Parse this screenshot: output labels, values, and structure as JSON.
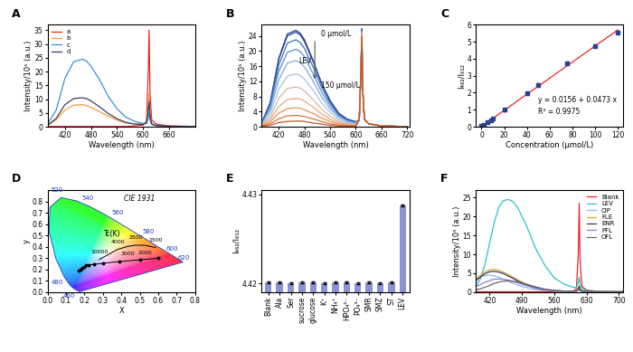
{
  "chart_data": [
    {
      "type": "line",
      "title": "A",
      "x_label": "Wavelength (nm)",
      "y_label": "Intensity/10⁵ (a.u.)",
      "xlim": [
        380,
        720
      ],
      "ylim": [
        0,
        37
      ],
      "xticks": [
        420,
        480,
        540,
        600,
        660
      ],
      "yticks": [
        0,
        5,
        10,
        15,
        20,
        25,
        30,
        35
      ],
      "legend": "upper left",
      "x": [
        380,
        400,
        420,
        440,
        460,
        470,
        480,
        500,
        520,
        540,
        560,
        580,
        600,
        608,
        612,
        614,
        616,
        620,
        630,
        660,
        700,
        720
      ],
      "series": [
        {
          "name": "a",
          "color": "#e8262a",
          "values": [
            0.1,
            0.1,
            0.1,
            0.1,
            0.1,
            0.1,
            0.1,
            0.1,
            0.1,
            0.1,
            0.1,
            0.3,
            0.6,
            2.0,
            20,
            35,
            12,
            2.5,
            1.0,
            0.3,
            0.2,
            0.1
          ]
        },
        {
          "name": "b",
          "color": "#f39c3c",
          "values": [
            0.5,
            2.5,
            6.0,
            7.8,
            8.0,
            7.6,
            7.0,
            5.5,
            3.8,
            2.4,
            1.4,
            1.0,
            1.0,
            1.5,
            8,
            12,
            5,
            1.2,
            0.5,
            0.2,
            0.1,
            0.1
          ]
        },
        {
          "name": "c",
          "color": "#3b8fd9",
          "values": [
            1.0,
            6.0,
            17.5,
            23.5,
            24.5,
            23.8,
            22,
            17,
            11,
            6.5,
            3.5,
            2.0,
            1.2,
            1.3,
            3,
            5,
            2.5,
            0.8,
            0.4,
            0.2,
            0.1,
            0.1
          ]
        },
        {
          "name": "d",
          "color": "#3a3f5c",
          "values": [
            0.5,
            3.0,
            8.0,
            10.2,
            10.5,
            10.2,
            9.4,
            7.2,
            4.8,
            2.9,
            1.6,
            1.0,
            0.8,
            1.3,
            6,
            9,
            4,
            1.0,
            0.4,
            0.2,
            0.1,
            0.1
          ]
        }
      ]
    },
    {
      "type": "line",
      "title": "B",
      "x_label": "Wavelength (nm)",
      "y_label": "Intensity/10⁵ (a.u.)",
      "xlim": [
        380,
        725
      ],
      "ylim": [
        0,
        27
      ],
      "xticks": [
        420,
        480,
        540,
        600,
        660,
        720
      ],
      "yticks": [
        0,
        4,
        8,
        12,
        16,
        20,
        24
      ],
      "annotations": [
        "0 μmol/L",
        "LEV",
        "150 μmol/L"
      ],
      "x": [
        380,
        400,
        420,
        440,
        460,
        470,
        480,
        500,
        520,
        540,
        560,
        580,
        600,
        608,
        612,
        614,
        616,
        620,
        630,
        660,
        700,
        720
      ],
      "series": [
        {
          "color": "#1f2f7a",
          "values": [
            1.0,
            6.4,
            18.1,
            24.5,
            25.5,
            24.7,
            23.0,
            17.6,
            11.5,
            6.9,
            3.6,
            2.0,
            1.3,
            1.8,
            15,
            26,
            10,
            2,
            0.8,
            0.2,
            0.1,
            0.1
          ]
        },
        {
          "color": "#2d4fa0",
          "values": [
            1.0,
            6.3,
            17.8,
            24.0,
            25.0,
            24.3,
            22.5,
            17.3,
            11.3,
            6.8,
            3.5,
            2.0,
            1.3,
            1.8,
            15,
            25.8,
            10,
            2,
            0.8,
            0.2,
            0.1,
            0.1
          ]
        },
        {
          "color": "#3d6fbf",
          "values": [
            0.9,
            5.8,
            16.3,
            22.1,
            23.0,
            22.3,
            20.7,
            15.9,
            10.4,
            6.2,
            3.2,
            1.8,
            1.2,
            1.8,
            15,
            25.5,
            10,
            2,
            0.8,
            0.2,
            0.1,
            0.1
          ]
        },
        {
          "color": "#5b8fd0",
          "values": [
            0.8,
            5.1,
            14.6,
            19.7,
            20.5,
            19.9,
            18.5,
            14.1,
            9.2,
            5.5,
            2.9,
            1.6,
            1.0,
            1.8,
            15,
            25.2,
            10,
            2,
            0.8,
            0.2,
            0.1,
            0.1
          ]
        },
        {
          "color": "#7fa9dc",
          "values": [
            0.7,
            4.4,
            12.4,
            16.8,
            17.5,
            17.0,
            15.8,
            12.1,
            7.9,
            4.7,
            2.5,
            1.4,
            0.9,
            1.8,
            15,
            25,
            10,
            2,
            0.8,
            0.2,
            0.1,
            0.1
          ]
        },
        {
          "color": "#a7c2e4",
          "values": [
            0.6,
            3.5,
            9.9,
            13.4,
            14.0,
            13.6,
            12.6,
            9.7,
            6.3,
            3.8,
            2.0,
            1.1,
            0.7,
            1.8,
            15,
            24.8,
            10,
            2,
            0.8,
            0.2,
            0.1,
            0.1
          ]
        },
        {
          "color": "#d3b8a8",
          "values": [
            0.4,
            2.6,
            7.5,
            10.1,
            10.5,
            10.2,
            9.5,
            7.2,
            4.7,
            2.8,
            1.5,
            0.8,
            0.5,
            1.8,
            15,
            24.6,
            10,
            2,
            0.8,
            0.2,
            0.1,
            0.1
          ]
        },
        {
          "color": "#e9a77a",
          "values": [
            0.3,
            1.9,
            5.3,
            7.2,
            7.5,
            7.3,
            6.8,
            5.2,
            3.4,
            2.0,
            1.1,
            0.6,
            0.4,
            1.8,
            15,
            24.4,
            10,
            2,
            0.8,
            0.2,
            0.1,
            0.1
          ]
        },
        {
          "color": "#e98f54",
          "values": [
            0.2,
            1.3,
            3.6,
            4.8,
            5.0,
            4.9,
            4.5,
            3.5,
            2.3,
            1.4,
            0.7,
            0.4,
            0.3,
            1.8,
            15,
            24.2,
            10,
            2,
            0.8,
            0.2,
            0.1,
            0.1
          ]
        },
        {
          "color": "#d9763a",
          "values": [
            0.1,
            0.8,
            2.1,
            2.9,
            3.0,
            2.9,
            2.7,
            2.1,
            1.4,
            0.8,
            0.4,
            0.2,
            0.2,
            1.8,
            15,
            24,
            10,
            2,
            0.8,
            0.2,
            0.1,
            0.1
          ]
        },
        {
          "color": "#b85a2a",
          "values": [
            0.1,
            0.4,
            1.1,
            1.4,
            1.5,
            1.5,
            1.4,
            1.0,
            0.7,
            0.4,
            0.2,
            0.1,
            0.1,
            1.8,
            15,
            23.8,
            10,
            2,
            0.8,
            0.2,
            0.1,
            0.1
          ]
        }
      ]
    },
    {
      "type": "scatter",
      "title": "C",
      "x_label": "Concentration (μmol/L)",
      "y_label": "I₄₆₂/I₆₁₂",
      "xlim": [
        -5,
        125
      ],
      "ylim": [
        0,
        6
      ],
      "xticks": [
        0,
        20,
        40,
        60,
        80,
        100,
        120
      ],
      "yticks": [
        0,
        1,
        2,
        3,
        4,
        5,
        6
      ],
      "annotations": [
        "y = 0.0156 + 0.0473 x",
        "R² = 0.9975"
      ],
      "x": [
        0,
        1,
        2,
        5,
        8,
        10,
        20,
        40,
        50,
        75,
        100,
        120
      ],
      "values": [
        0.05,
        0.07,
        0.1,
        0.25,
        0.4,
        0.5,
        1.0,
        1.95,
        2.45,
        3.75,
        4.75,
        5.55
      ],
      "errors": [
        0.03,
        0.03,
        0.03,
        0.04,
        0.04,
        0.05,
        0.08,
        0.08,
        0.08,
        0.1,
        0.08,
        0.08
      ],
      "color": "#2b3f8f",
      "marker": "s",
      "fit": {
        "color": "#e8262a",
        "x": [
          0,
          120
        ],
        "values": [
          0.02,
          5.69
        ]
      }
    },
    {
      "type": "cie",
      "title": "D",
      "x_label": "X",
      "y_label": "y",
      "xlim": [
        0.0,
        0.8
      ],
      "ylim": [
        0.0,
        0.9
      ],
      "xticks": [
        0.0,
        0.1,
        0.2,
        0.3,
        0.4,
        0.5,
        0.6,
        0.7,
        0.8
      ],
      "yticks": [
        0.0,
        0.1,
        0.2,
        0.3,
        0.4,
        0.5,
        0.6,
        0.7,
        0.8
      ],
      "annotations": [
        "CIE 1931"
      ],
      "locus": {
        "color": "#1f3fbf",
        "x": [
          0.1741,
          0.144,
          0.1241,
          0.0913,
          0.0454,
          0.0082,
          0.0139,
          0.0743,
          0.1547,
          0.2296,
          0.3016,
          0.3731,
          0.4441,
          0.5125,
          0.5752,
          0.627,
          0.6658,
          0.6915,
          0.719,
          0.7347
        ],
        "values": [
          0.005,
          0.0297,
          0.0578,
          0.1327,
          0.295,
          0.5384,
          0.7502,
          0.8338,
          0.8059,
          0.7543,
          0.6923,
          0.6245,
          0.5547,
          0.4866,
          0.4242,
          0.3725,
          0.334,
          0.3083,
          0.2809,
          0.2653
        ],
        "labels": [
          null,
          "460",
          null,
          "480",
          null,
          null,
          null,
          "520",
          null,
          "540",
          null,
          "560",
          null,
          "580",
          null,
          "600",
          null,
          "620",
          null,
          null
        ]
      },
      "planckian": {
        "name": "Tc(K)",
        "color": "#000000",
        "x": [
          0.281,
          0.38,
          0.437,
          0.477,
          0.527,
          0.586
        ],
        "values": [
          0.288,
          0.377,
          0.404,
          0.414,
          0.413,
          0.393
        ],
        "labels": [
          "10000",
          "4000",
          "3000",
          "2500",
          "2000",
          "1500"
        ]
      },
      "series": [
        {
          "color": "#000000",
          "marker": "o",
          "x": [
            0.17,
            0.18,
            0.19,
            0.2,
            0.21,
            0.225,
            0.25,
            0.3,
            0.39,
            0.5,
            0.6
          ],
          "values": [
            0.19,
            0.2,
            0.215,
            0.225,
            0.235,
            0.24,
            0.245,
            0.255,
            0.27,
            0.285,
            0.3
          ]
        }
      ]
    },
    {
      "type": "bar",
      "title": "E",
      "y_label": "I₄₆₂/I₆₁₂",
      "categories": [
        "Blank",
        "Ala",
        "Ser",
        "sucrose",
        "glucose",
        "K⁺",
        "NH₄⁺",
        "HPO₄²⁻",
        "PO₄³⁻",
        "SMR",
        "SMZ",
        "ST",
        "LEV"
      ],
      "values": [
        4.4201,
        4.4201,
        4.42,
        4.4201,
        4.4201,
        4.42,
        4.4201,
        4.4201,
        4.42,
        4.4201,
        4.42,
        4.4201,
        4.4288
      ],
      "errors": [
        0.0001,
        0.0001,
        0.0001,
        0.0001,
        0.0001,
        0.0001,
        0.0001,
        0.0001,
        0.0001,
        0.0001,
        0.0001,
        0.0001,
        0.0001
      ],
      "color": "#8a93d3",
      "ylim": [
        4.419,
        4.4305
      ],
      "yticks": [
        4.42,
        4.43
      ]
    },
    {
      "type": "line",
      "title": "F",
      "x_label": "Wavelength (nm)",
      "y_label": "Intensity/10⁵ (a.u.)",
      "xlim": [
        390,
        710
      ],
      "ylim": [
        0,
        27
      ],
      "xticks": [
        420,
        490,
        560,
        630,
        700
      ],
      "yticks": [
        0,
        5,
        10,
        15,
        20,
        25
      ],
      "legend": "upper right",
      "x": [
        390,
        400,
        410,
        420,
        430,
        440,
        450,
        460,
        470,
        480,
        500,
        520,
        540,
        560,
        580,
        600,
        608,
        612,
        614,
        616,
        620,
        630,
        660,
        700,
        710
      ],
      "series": [
        {
          "name": "Blank",
          "color": "#e8262a",
          "values": [
            0.1,
            0.1,
            0.1,
            0.1,
            0.1,
            0.1,
            0.1,
            0.1,
            0.1,
            0.1,
            0.1,
            0.1,
            0.1,
            0.1,
            0.1,
            0.1,
            1.0,
            10,
            23.5,
            8,
            1.5,
            0.5,
            0.2,
            0.1,
            0.1
          ]
        },
        {
          "name": "LEV",
          "color": "#2bc4c4",
          "values": [
            1.5,
            3.5,
            7.5,
            13,
            18.5,
            22.5,
            24.2,
            24.5,
            24.0,
            22.5,
            17.5,
            11.5,
            7,
            3.8,
            2.2,
            1.3,
            1.3,
            2.5,
            4,
            2,
            0.8,
            0.4,
            0.2,
            0.1,
            0.1
          ]
        },
        {
          "name": "CIP",
          "color": "#8ab6e8",
          "values": [
            3.5,
            4.1,
            4.4,
            4.5,
            4.3,
            3.9,
            3.4,
            2.9,
            2.4,
            1.9,
            1.2,
            0.7,
            0.4,
            0.3,
            0.2,
            0.1,
            0.2,
            0.6,
            1.0,
            0.5,
            0.2,
            0.1,
            0.1,
            0.1,
            0.1
          ]
        },
        {
          "name": "FLE",
          "color": "#e3a23b",
          "values": [
            3.5,
            4.5,
            5.4,
            5.9,
            6.0,
            5.8,
            5.3,
            4.7,
            4.0,
            3.3,
            2.1,
            1.2,
            0.7,
            0.4,
            0.3,
            0.2,
            0.3,
            1.0,
            1.8,
            0.8,
            0.3,
            0.2,
            0.1,
            0.1,
            0.1
          ]
        },
        {
          "name": "ENR",
          "color": "#333a5c",
          "values": [
            3.0,
            4.0,
            4.9,
            5.4,
            5.5,
            5.3,
            4.9,
            4.3,
            3.7,
            3.0,
            1.9,
            1.1,
            0.6,
            0.4,
            0.3,
            0.2,
            0.3,
            0.9,
            1.5,
            0.7,
            0.3,
            0.2,
            0.1,
            0.1,
            0.1
          ]
        },
        {
          "name": "PFL",
          "color": "#8a7fd6",
          "values": [
            1.5,
            2.0,
            2.6,
            3.1,
            3.4,
            3.5,
            3.4,
            3.2,
            2.9,
            2.5,
            1.7,
            1.0,
            0.6,
            0.3,
            0.2,
            0.1,
            0.2,
            0.5,
            0.8,
            0.4,
            0.2,
            0.1,
            0.1,
            0.1,
            0.1
          ]
        },
        {
          "name": "OFL",
          "color": "#6b6b6b",
          "values": [
            0.6,
            0.9,
            1.3,
            1.8,
            2.3,
            2.7,
            2.9,
            3.0,
            2.9,
            2.7,
            2.1,
            1.4,
            0.8,
            0.5,
            0.3,
            0.2,
            0.3,
            0.6,
            0.9,
            0.4,
            0.2,
            0.1,
            0.1,
            0.1,
            0.1
          ]
        }
      ]
    }
  ]
}
